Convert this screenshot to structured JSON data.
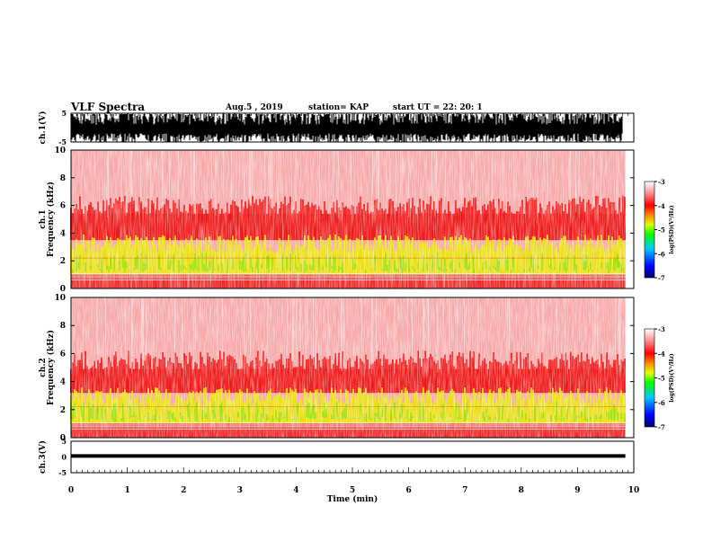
{
  "header": {
    "title": "VLF Spectra",
    "date": "Aug.5  , 2019",
    "station": "station= KAP",
    "start_ut": "start  UT  =   22: 20: 1"
  },
  "chart_data": [
    {
      "type": "line",
      "panel": "ch1-waveform",
      "ylabel": "ch.1(V)",
      "ylim": [
        -5,
        5
      ],
      "yticks": [
        "5",
        "-5"
      ],
      "xlim": [
        0,
        10
      ],
      "color": "#000000"
    },
    {
      "type": "heatmap",
      "panel": "ch1-spectrogram",
      "ylabel": "ch.1\nFrequency  (kHz)",
      "ylim": [
        0,
        10
      ],
      "yticks": [
        "0",
        "2",
        "4",
        "6",
        "8",
        "10"
      ],
      "xlim": [
        0,
        9.85
      ],
      "bands": [
        {
          "from": 0,
          "to": 0.6,
          "level": "red"
        },
        {
          "from": 0.6,
          "to": 1.0,
          "level": "white-lines"
        },
        {
          "from": 1.0,
          "to": 3.5,
          "level": "yellow-green"
        },
        {
          "from": 3.5,
          "to": 5.0,
          "level": "red"
        },
        {
          "from": 5.0,
          "to": 10.0,
          "level": "pink"
        }
      ],
      "colorbar": {
        "label": "log(PSD)(V²/Hz)",
        "ticks": [
          "-3",
          "-4",
          "-5",
          "-6",
          "-7"
        ],
        "range": [
          -7,
          -3
        ],
        "colors": [
          "#00006e",
          "#0000ff",
          "#00c8ff",
          "#00ff00",
          "#e0ff00",
          "#ff8800",
          "#ff0000",
          "#ff9090",
          "#ffffff"
        ]
      }
    },
    {
      "type": "heatmap",
      "panel": "ch2-spectrogram",
      "ylabel": "ch.2\nFrequency  (kHz)",
      "ylim": [
        0,
        10
      ],
      "yticks": [
        "0",
        "2",
        "4",
        "6",
        "8",
        "10"
      ],
      "xlim": [
        0,
        9.85
      ],
      "bands": [
        {
          "from": 0,
          "to": 0.5,
          "level": "red"
        },
        {
          "from": 0.5,
          "to": 1.0,
          "level": "white-lines"
        },
        {
          "from": 1.0,
          "to": 3.2,
          "level": "yellow-green"
        },
        {
          "from": 3.2,
          "to": 4.5,
          "level": "red"
        },
        {
          "from": 4.5,
          "to": 10.0,
          "level": "pink"
        }
      ],
      "colorbar": {
        "label": "log(PSD)(V²/Hz)",
        "ticks": [
          "-3",
          "-4",
          "-5",
          "-6",
          "-7"
        ],
        "range": [
          -7,
          -3
        ]
      }
    },
    {
      "type": "line",
      "panel": "ch3-waveform",
      "ylabel": "ch.3(V)",
      "ylim": [
        -5,
        5
      ],
      "yticks": [
        "5",
        "0",
        "-5"
      ],
      "xlim": [
        0,
        9.85
      ],
      "x": [
        0,
        9.85
      ],
      "y": [
        0.3,
        0.3
      ],
      "xlabel": "Time  (min)",
      "xticks": [
        "0",
        "1",
        "2",
        "3",
        "4",
        "5",
        "6",
        "7",
        "8",
        "9",
        "10"
      ]
    }
  ]
}
